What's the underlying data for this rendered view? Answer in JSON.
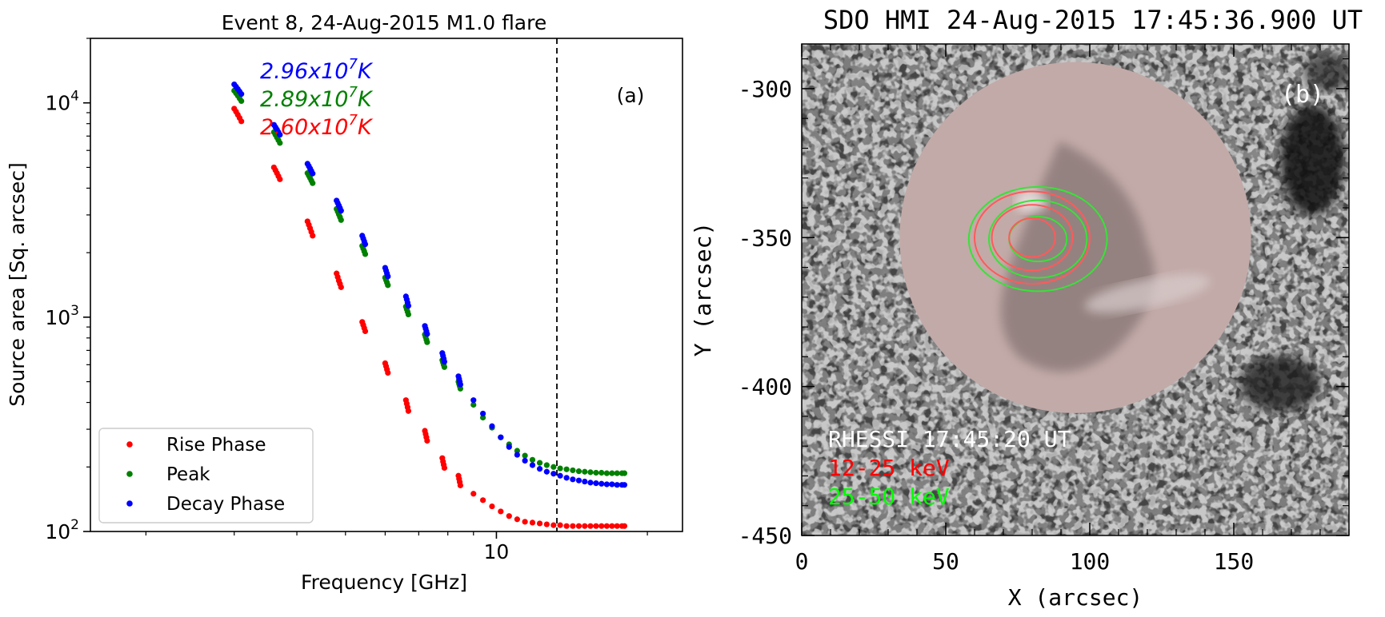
{
  "chart_data": [
    {
      "type": "scatter",
      "title": "Event 8, 24-Aug-2015 M1.0 flare",
      "xlabel": "Frequency [GHz]",
      "ylabel": "Source area [Sq. arcsec]",
      "x_scale": "log",
      "y_scale": "log",
      "xlim": [
        1.55,
        23.5
      ],
      "ylim": [
        100,
        20000
      ],
      "x_tick_labels": [
        "10"
      ],
      "y_tick_labels": [
        "10^2",
        "10^3",
        "10^4"
      ],
      "panel_label": "(a)",
      "vertical_line_x": 13.2,
      "legend_position": "lower-left",
      "temperature_labels": [
        {
          "mantissa": "2.96x10",
          "exponent": "7",
          "unit": "K",
          "color": "#0000ff"
        },
        {
          "mantissa": "2.89x10",
          "exponent": "7",
          "unit": "K",
          "color": "#008000"
        },
        {
          "mantissa": "2.60x10",
          "exponent": "7",
          "unit": "K",
          "color": "#ff0000"
        }
      ],
      "series": [
        {
          "name": "Rise Phase",
          "color": "#ff0000",
          "x": [
            3.0,
            3.025,
            3.05,
            3.075,
            3.1,
            3.6,
            3.625,
            3.65,
            3.675,
            3.7,
            4.2,
            4.225,
            4.25,
            4.275,
            4.3,
            4.8,
            4.825,
            4.85,
            4.875,
            4.9,
            5.4,
            5.425,
            5.45,
            5.475,
            6.0,
            6.025,
            6.05,
            6.075,
            6.6,
            6.625,
            6.65,
            6.675,
            7.2,
            7.225,
            7.25,
            7.275,
            7.8,
            7.825,
            7.85,
            7.875,
            8.4,
            8.425,
            8.45,
            8.475,
            9.0,
            9.4,
            9.8,
            10.2,
            10.6,
            11.0,
            11.4,
            11.8,
            12.2,
            12.6,
            13.0,
            13.4,
            13.8,
            14.2,
            14.6,
            15.0,
            15.4,
            15.8,
            16.2,
            16.6,
            17.0,
            17.4,
            17.8,
            18.0
          ],
          "y": [
            9400,
            9100,
            8800,
            8500,
            8200,
            5000,
            4850,
            4700,
            4550,
            4400,
            2800,
            2700,
            2600,
            2500,
            2400,
            1600,
            1540,
            1480,
            1430,
            1380,
            950,
            920,
            890,
            860,
            610,
            590,
            570,
            550,
            410,
            395,
            380,
            365,
            295,
            285,
            275,
            265,
            220,
            212,
            205,
            198,
            182,
            176,
            170,
            164,
            150,
            140,
            131,
            124,
            118,
            114,
            111,
            110,
            109,
            108,
            107,
            107,
            106,
            106,
            106,
            106,
            106,
            106,
            106,
            106,
            106,
            106,
            106,
            106
          ]
        },
        {
          "name": "Peak",
          "color": "#008000",
          "x": [
            3.0,
            3.025,
            3.05,
            3.075,
            3.1,
            3.6,
            3.625,
            3.65,
            3.675,
            3.7,
            4.2,
            4.225,
            4.25,
            4.275,
            4.3,
            4.8,
            4.825,
            4.85,
            4.875,
            4.9,
            5.4,
            5.425,
            5.45,
            5.475,
            6.0,
            6.025,
            6.05,
            6.075,
            6.6,
            6.625,
            6.65,
            6.675,
            7.2,
            7.225,
            7.25,
            7.275,
            7.8,
            7.825,
            7.85,
            7.875,
            8.4,
            8.425,
            8.45,
            8.475,
            9.0,
            9.4,
            9.8,
            10.2,
            10.6,
            11.0,
            11.4,
            11.8,
            12.2,
            12.6,
            13.0,
            13.4,
            13.8,
            14.2,
            14.6,
            15.0,
            15.4,
            15.8,
            16.2,
            16.6,
            17.0,
            17.4,
            17.8,
            18.0
          ],
          "y": [
            11400,
            11100,
            10800,
            10500,
            10200,
            7300,
            7100,
            6900,
            6700,
            6500,
            4700,
            4580,
            4460,
            4340,
            4220,
            3200,
            3110,
            3020,
            2930,
            2840,
            2150,
            2090,
            2030,
            1970,
            1530,
            1490,
            1450,
            1410,
            1120,
            1090,
            1060,
            1030,
            830,
            808,
            786,
            764,
            630,
            615,
            600,
            585,
            500,
            488,
            476,
            464,
            390,
            340,
            305,
            275,
            255,
            238,
            226,
            216,
            209,
            204,
            200,
            197,
            195,
            193,
            191,
            190,
            189,
            188,
            188,
            187,
            187,
            187,
            187,
            187
          ]
        },
        {
          "name": "Decay Phase",
          "color": "#0000ff",
          "x": [
            3.0,
            3.025,
            3.05,
            3.075,
            3.1,
            3.6,
            3.625,
            3.65,
            3.675,
            3.7,
            4.2,
            4.225,
            4.25,
            4.275,
            4.3,
            4.8,
            4.825,
            4.85,
            4.875,
            4.9,
            5.4,
            5.425,
            5.45,
            5.475,
            6.0,
            6.025,
            6.05,
            6.075,
            6.6,
            6.625,
            6.65,
            6.675,
            7.2,
            7.225,
            7.25,
            7.275,
            7.8,
            7.825,
            7.85,
            7.875,
            8.4,
            8.425,
            8.45,
            8.475,
            9.0,
            9.4,
            9.8,
            10.2,
            10.6,
            11.0,
            11.4,
            11.8,
            12.2,
            12.6,
            13.0,
            13.4,
            13.8,
            14.2,
            14.6,
            15.0,
            15.4,
            15.8,
            16.2,
            16.6,
            17.0,
            17.4,
            17.8,
            18.0
          ],
          "y": [
            12200,
            11900,
            11600,
            11300,
            11000,
            7900,
            7700,
            7500,
            7300,
            7100,
            5200,
            5070,
            4940,
            4810,
            4680,
            3500,
            3410,
            3320,
            3230,
            3140,
            2400,
            2330,
            2260,
            2190,
            1700,
            1650,
            1600,
            1550,
            1250,
            1210,
            1170,
            1130,
            910,
            885,
            860,
            835,
            680,
            660,
            640,
            620,
            530,
            515,
            500,
            485,
            410,
            355,
            310,
            275,
            248,
            228,
            214,
            204,
            196,
            190,
            186,
            182,
            178,
            175,
            173,
            171,
            169,
            168,
            167,
            166,
            166,
            165,
            165,
            165
          ]
        }
      ]
    },
    {
      "type": "heatmap",
      "title": "SDO HMI 24-Aug-2015 17:45:36.900 UT",
      "xlabel": "X (arcsec)",
      "ylabel": "Y (arcsec)",
      "xlim": [
        0,
        190
      ],
      "ylim": [
        -450,
        -285
      ],
      "x_tick_labels": [
        "0",
        "50",
        "100",
        "150"
      ],
      "y_tick_labels": [
        "-300",
        "-350",
        "-400",
        "-450"
      ],
      "panel_label": "(b)",
      "circle_center": [
        95,
        -350
      ],
      "circle_radius": 61,
      "contours": {
        "red": {
          "center": [
            80,
            -350
          ],
          "levels": [
            [
              8,
              6.5
            ],
            [
              14,
              11
            ],
            [
              20,
              15.5
            ]
          ]
        },
        "green": {
          "center": [
            82,
            -350.5
          ],
          "levels": [
            [
              10,
              7.5
            ],
            [
              17,
              13
            ],
            [
              24,
              17.5
            ]
          ]
        }
      },
      "annotations": [
        {
          "text": "RHESSI 17:45:20 UT",
          "color": "#ffffff"
        },
        {
          "text": "12-25 keV",
          "color": "#ff0000"
        },
        {
          "text": "25-50 keV",
          "color": "#00ff00"
        }
      ]
    }
  ]
}
